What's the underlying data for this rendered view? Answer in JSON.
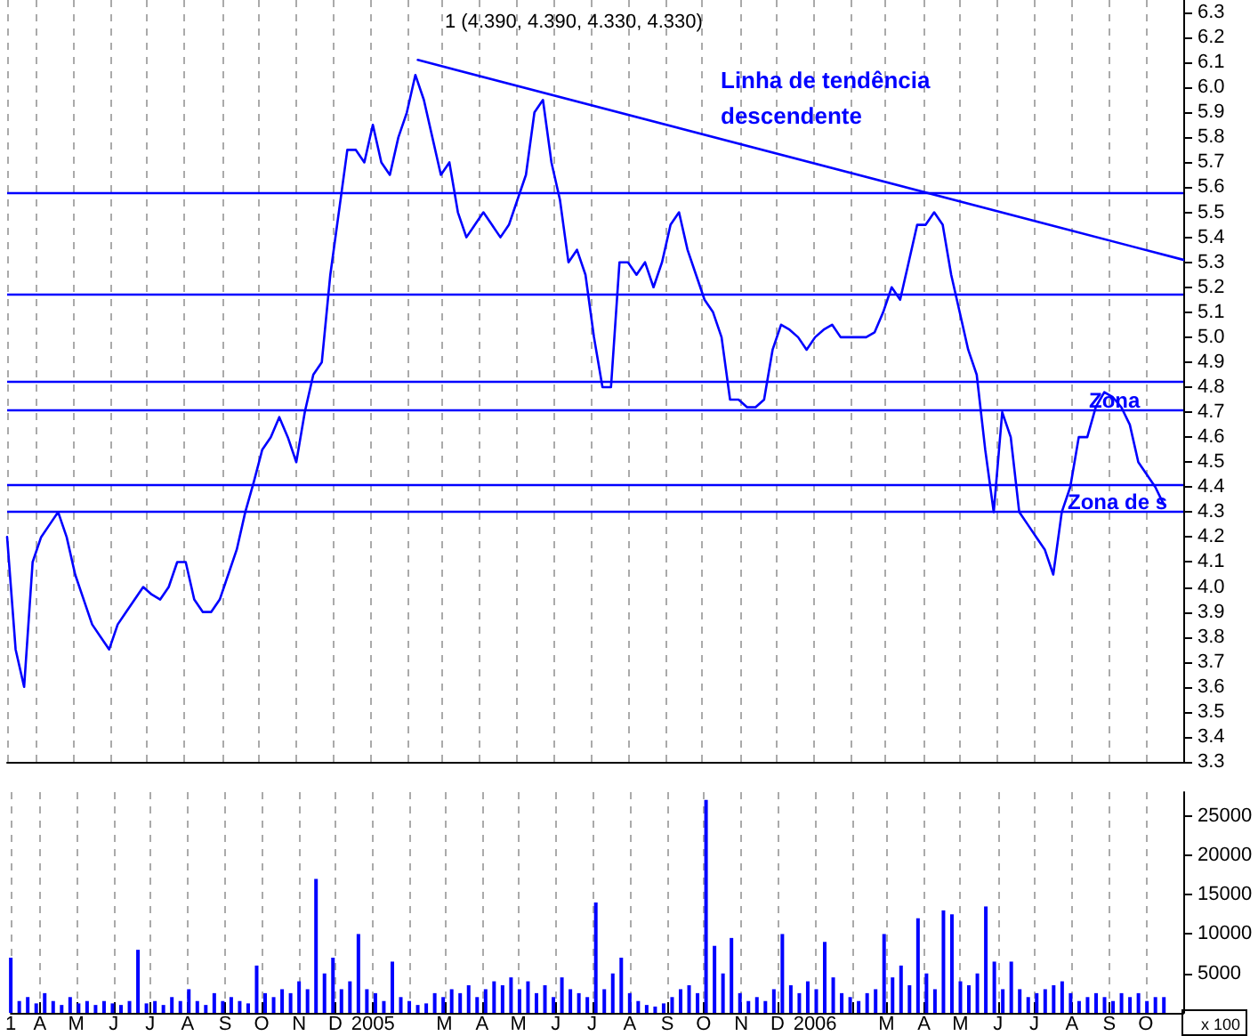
{
  "chart_data": [
    {
      "type": "line",
      "title": "1 (4.390, 4.390, 4.330, 4.330)",
      "x": [
        "2004-03-08",
        "2004-03-15",
        "2004-03-22",
        "2004-03-29",
        "2004-04-05",
        "2004-04-12",
        "2004-04-19",
        "2004-04-26",
        "2004-05-03",
        "2004-05-10",
        "2004-05-17",
        "2004-05-24",
        "2004-05-31",
        "2004-06-07",
        "2004-06-14",
        "2004-06-21",
        "2004-06-28",
        "2004-07-05",
        "2004-07-12",
        "2004-07-19",
        "2004-07-26",
        "2004-08-02",
        "2004-08-09",
        "2004-08-16",
        "2004-08-23",
        "2004-08-30",
        "2004-09-06",
        "2004-09-13",
        "2004-09-20",
        "2004-09-27",
        "2004-10-04",
        "2004-10-11",
        "2004-10-18",
        "2004-10-25",
        "2004-11-01",
        "2004-11-08",
        "2004-11-15",
        "2004-11-22",
        "2004-11-29",
        "2004-12-06",
        "2004-12-13",
        "2004-12-20",
        "2004-12-27",
        "2005-01-03",
        "2005-01-10",
        "2005-01-17",
        "2005-01-24",
        "2005-01-31",
        "2005-02-07",
        "2005-02-14",
        "2005-02-21",
        "2005-02-28",
        "2005-03-07",
        "2005-03-14",
        "2005-03-21",
        "2005-03-28",
        "2005-04-04",
        "2005-04-11",
        "2005-04-18",
        "2005-04-25",
        "2005-05-02",
        "2005-05-09",
        "2005-05-16",
        "2005-05-23",
        "2005-05-30",
        "2005-06-06",
        "2005-06-13",
        "2005-06-20",
        "2005-06-27",
        "2005-07-04",
        "2005-07-11",
        "2005-07-18",
        "2005-07-25",
        "2005-08-01",
        "2005-08-08",
        "2005-08-15",
        "2005-08-22",
        "2005-08-29",
        "2005-09-05",
        "2005-09-12",
        "2005-09-19",
        "2005-09-26",
        "2005-10-03",
        "2005-10-10",
        "2005-10-17",
        "2005-10-24",
        "2005-10-31",
        "2005-11-07",
        "2005-11-14",
        "2005-11-21",
        "2005-11-28",
        "2005-12-05",
        "2005-12-12",
        "2005-12-19",
        "2005-12-26",
        "2006-01-02",
        "2006-01-09",
        "2006-01-16",
        "2006-01-23",
        "2006-01-30",
        "2006-02-06",
        "2006-02-13",
        "2006-02-20",
        "2006-02-27",
        "2006-03-06",
        "2006-03-13",
        "2006-03-20",
        "2006-03-27",
        "2006-04-03",
        "2006-04-10",
        "2006-04-17",
        "2006-04-24",
        "2006-05-01",
        "2006-05-08",
        "2006-05-15",
        "2006-05-22",
        "2006-05-29",
        "2006-06-05",
        "2006-06-12",
        "2006-06-19",
        "2006-06-26",
        "2006-07-03",
        "2006-07-10",
        "2006-07-17",
        "2006-07-24",
        "2006-07-31",
        "2006-08-07",
        "2006-08-14",
        "2006-08-21",
        "2006-08-28",
        "2006-09-04",
        "2006-09-11",
        "2006-09-18",
        "2006-09-25",
        "2006-10-02",
        "2006-10-09",
        "2006-10-16"
      ],
      "series": [
        {
          "color": "#0000ff",
          "values": [
            4.2,
            3.75,
            3.6,
            4.1,
            4.2,
            4.25,
            4.3,
            4.2,
            4.05,
            3.95,
            3.85,
            3.8,
            3.75,
            3.85,
            3.9,
            3.95,
            4.0,
            3.97,
            3.95,
            4.0,
            4.1,
            4.1,
            3.95,
            3.9,
            3.9,
            3.95,
            4.05,
            4.15,
            4.3,
            4.42,
            4.55,
            4.6,
            4.68,
            4.6,
            4.5,
            4.7,
            4.85,
            4.9,
            5.25,
            5.5,
            5.75,
            5.75,
            5.7,
            5.85,
            5.7,
            5.65,
            5.8,
            5.9,
            6.05,
            5.95,
            5.8,
            5.65,
            5.7,
            5.5,
            5.4,
            5.45,
            5.5,
            5.45,
            5.4,
            5.45,
            5.55,
            5.65,
            5.9,
            5.95,
            5.7,
            5.55,
            5.3,
            5.35,
            5.25,
            5.0,
            4.8,
            4.8,
            5.3,
            5.3,
            5.25,
            5.3,
            5.2,
            5.3,
            5.45,
            5.5,
            5.35,
            5.25,
            5.15,
            5.1,
            5.0,
            4.75,
            4.75,
            4.72,
            4.72,
            4.75,
            4.95,
            5.05,
            5.03,
            5.0,
            4.95,
            5.0,
            5.03,
            5.05,
            5.0,
            5.0,
            5.0,
            5.0,
            5.02,
            5.1,
            5.2,
            5.15,
            5.3,
            5.45,
            5.45,
            5.5,
            5.45,
            5.25,
            5.1,
            4.95,
            4.85,
            4.55,
            4.3,
            4.7,
            4.6,
            4.3,
            4.25,
            4.2,
            4.15,
            4.05,
            4.3,
            4.4,
            4.6,
            4.6,
            4.72,
            4.78,
            4.76,
            4.72,
            4.65,
            4.5,
            4.45,
            4.4,
            4.33
          ]
        },
        {
          "type": "line",
          "color": "#0000ff",
          "x": [
            "2005-02-09",
            "2006-11-01"
          ],
          "values": [
            6.11,
            5.31
          ]
        }
      ],
      "xlim": [
        "2004-03-08",
        "2006-11-01"
      ],
      "xticks": [
        {
          "value": "2004-03-08",
          "label": "1"
        },
        {
          "value": "2004-04-01",
          "label": "A"
        },
        {
          "value": "2004-05-01",
          "label": "M"
        },
        {
          "value": "2004-06-01",
          "label": "J"
        },
        {
          "value": "2004-07-01",
          "label": "J"
        },
        {
          "value": "2004-08-01",
          "label": "A"
        },
        {
          "value": "2004-09-01",
          "label": "S"
        },
        {
          "value": "2004-10-01",
          "label": "O"
        },
        {
          "value": "2004-11-01",
          "label": "N"
        },
        {
          "value": "2004-12-01",
          "label": "D"
        },
        {
          "value": "2005-01-01",
          "label": "2005"
        },
        {
          "value": "2005-02-01",
          "label": null
        },
        {
          "value": "2005-03-01",
          "label": "M"
        },
        {
          "value": "2005-04-01",
          "label": "A"
        },
        {
          "value": "2005-05-01",
          "label": "M"
        },
        {
          "value": "2005-06-01",
          "label": "J"
        },
        {
          "value": "2005-07-01",
          "label": "J"
        },
        {
          "value": "2005-08-01",
          "label": "A"
        },
        {
          "value": "2005-09-01",
          "label": "S"
        },
        {
          "value": "2005-10-01",
          "label": "O"
        },
        {
          "value": "2005-11-01",
          "label": "N"
        },
        {
          "value": "2005-12-01",
          "label": "D"
        },
        {
          "value": "2006-01-01",
          "label": "2006"
        },
        {
          "value": "2006-02-01",
          "label": null
        },
        {
          "value": "2006-03-01",
          "label": "M"
        },
        {
          "value": "2006-04-01",
          "label": "A"
        },
        {
          "value": "2006-05-01",
          "label": "M"
        },
        {
          "value": "2006-06-01",
          "label": "J"
        },
        {
          "value": "2006-07-01",
          "label": "J"
        },
        {
          "value": "2006-08-01",
          "label": "A"
        },
        {
          "value": "2006-09-01",
          "label": "S"
        },
        {
          "value": "2006-10-01",
          "label": "O"
        }
      ],
      "ylim": [
        3.3,
        6.35
      ],
      "yticks": [
        3.3,
        3.4,
        3.5,
        3.6,
        3.7,
        3.8,
        3.9,
        {
          "value": 4,
          "label": "4.0"
        },
        4.1,
        4.2,
        4.3,
        4.4,
        4.5,
        4.6,
        4.7,
        4.8,
        4.9,
        {
          "value": 5,
          "label": "5.0"
        },
        5.1,
        5.2,
        5.3,
        5.4,
        5.5,
        5.6,
        5.7,
        5.8,
        5.9,
        {
          "value": 6,
          "label": "6.0"
        },
        6.1,
        6.2,
        6.3
      ],
      "ref_lines": [
        {
          "axis": "y",
          "value": 5.58,
          "color": "#0000ff"
        },
        {
          "axis": "y",
          "value": 5.17,
          "color": "#0000ff"
        },
        {
          "axis": "y",
          "value": 4.82,
          "color": "#0000ff"
        },
        {
          "axis": "y",
          "value": 4.71,
          "color": "#0000ff"
        },
        {
          "axis": "y",
          "value": 4.41,
          "color": "#0000ff"
        },
        {
          "axis": "y",
          "value": 4.3,
          "color": "#0000ff"
        }
      ],
      "annotations": [
        "Linha de tendência descendente",
        "Zona",
        "Zona de s"
      ],
      "grid": "x",
      "tick_labels": "y"
    },
    {
      "type": "bar",
      "x": [
        "2004-03-08",
        "2004-03-15",
        "2004-03-22",
        "2004-03-29",
        "2004-04-05",
        "2004-04-12",
        "2004-04-19",
        "2004-04-26",
        "2004-05-03",
        "2004-05-10",
        "2004-05-17",
        "2004-05-24",
        "2004-05-31",
        "2004-06-07",
        "2004-06-14",
        "2004-06-21",
        "2004-06-28",
        "2004-07-05",
        "2004-07-12",
        "2004-07-19",
        "2004-07-26",
        "2004-08-02",
        "2004-08-09",
        "2004-08-16",
        "2004-08-23",
        "2004-08-30",
        "2004-09-06",
        "2004-09-13",
        "2004-09-20",
        "2004-09-27",
        "2004-10-04",
        "2004-10-11",
        "2004-10-18",
        "2004-10-25",
        "2004-11-01",
        "2004-11-08",
        "2004-11-15",
        "2004-11-22",
        "2004-11-29",
        "2004-12-06",
        "2004-12-13",
        "2004-12-20",
        "2004-12-27",
        "2005-01-03",
        "2005-01-10",
        "2005-01-17",
        "2005-01-24",
        "2005-01-31",
        "2005-02-07",
        "2005-02-14",
        "2005-02-21",
        "2005-02-28",
        "2005-03-07",
        "2005-03-14",
        "2005-03-21",
        "2005-03-28",
        "2005-04-04",
        "2005-04-11",
        "2005-04-18",
        "2005-04-25",
        "2005-05-02",
        "2005-05-09",
        "2005-05-16",
        "2005-05-23",
        "2005-05-30",
        "2005-06-06",
        "2005-06-13",
        "2005-06-20",
        "2005-06-27",
        "2005-07-04",
        "2005-07-11",
        "2005-07-18",
        "2005-07-25",
        "2005-08-01",
        "2005-08-08",
        "2005-08-15",
        "2005-08-22",
        "2005-08-29",
        "2005-09-05",
        "2005-09-12",
        "2005-09-19",
        "2005-09-26",
        "2005-10-03",
        "2005-10-10",
        "2005-10-17",
        "2005-10-24",
        "2005-10-31",
        "2005-11-07",
        "2005-11-14",
        "2005-11-21",
        "2005-11-28",
        "2005-12-05",
        "2005-12-12",
        "2005-12-19",
        "2005-12-26",
        "2006-01-02",
        "2006-01-09",
        "2006-01-16",
        "2006-01-23",
        "2006-01-30",
        "2006-02-06",
        "2006-02-13",
        "2006-02-20",
        "2006-02-27",
        "2006-03-06",
        "2006-03-13",
        "2006-03-20",
        "2006-03-27",
        "2006-04-03",
        "2006-04-10",
        "2006-04-17",
        "2006-04-24",
        "2006-05-01",
        "2006-05-08",
        "2006-05-15",
        "2006-05-22",
        "2006-05-29",
        "2006-06-05",
        "2006-06-12",
        "2006-06-19",
        "2006-06-26",
        "2006-07-03",
        "2006-07-10",
        "2006-07-17",
        "2006-07-24",
        "2006-07-31",
        "2006-08-07",
        "2006-08-14",
        "2006-08-21",
        "2006-08-28",
        "2006-09-04",
        "2006-09-11",
        "2006-09-18",
        "2006-09-25",
        "2006-10-02",
        "2006-10-09",
        "2006-10-16"
      ],
      "series": [
        {
          "color": "#0000ff",
          "values": [
            7000,
            1500,
            2000,
            1200,
            2500,
            1500,
            1000,
            2000,
            1200,
            1500,
            1000,
            1500,
            1200,
            1000,
            1500,
            8000,
            1200,
            1500,
            1000,
            2000,
            1500,
            3000,
            1500,
            1000,
            2500,
            1500,
            2000,
            1500,
            1200,
            6000,
            2500,
            2000,
            3000,
            2500,
            4000,
            3000,
            17000,
            5000,
            7000,
            3000,
            4000,
            10000,
            3000,
            2500,
            1500,
            6500,
            2000,
            1500,
            1000,
            1200,
            2500,
            2000,
            3000,
            2500,
            3500,
            2000,
            3000,
            4000,
            3500,
            4500,
            3000,
            4000,
            2500,
            3500,
            2000,
            4500,
            3000,
            2500,
            2000,
            14000,
            3000,
            5000,
            7000,
            2500,
            1500,
            1000,
            800,
            1200,
            2000,
            3000,
            3500,
            2500,
            27000,
            8500,
            5000,
            9500,
            2500,
            1500,
            2000,
            1500,
            3000,
            10000,
            3500,
            2500,
            4000,
            3000,
            9000,
            4500,
            2500,
            2000,
            1500,
            2500,
            3000,
            10000,
            4500,
            6000,
            3500,
            12000,
            5000,
            3000,
            13000,
            12500,
            4000,
            3500,
            5000,
            13500,
            6500,
            3000,
            6500,
            3000,
            2000,
            2500,
            3000,
            3500,
            4000,
            2500,
            1500,
            2000,
            2500,
            2000,
            1500,
            2500,
            2000,
            2500,
            1500,
            2000,
            2000
          ]
        }
      ],
      "xlim": [
        "2004-03-08",
        "2006-11-01"
      ],
      "xticks": [
        {
          "value": "2004-03-08",
          "label": "1"
        },
        {
          "value": "2004-04-01",
          "label": "A"
        },
        {
          "value": "2004-05-01",
          "label": "M"
        },
        {
          "value": "2004-06-01",
          "label": "J"
        },
        {
          "value": "2004-07-01",
          "label": "J"
        },
        {
          "value": "2004-08-01",
          "label": "A"
        },
        {
          "value": "2004-09-01",
          "label": "S"
        },
        {
          "value": "2004-10-01",
          "label": "O"
        },
        {
          "value": "2004-11-01",
          "label": "N"
        },
        {
          "value": "2004-12-01",
          "label": "D"
        },
        {
          "value": "2005-01-01",
          "label": "2005"
        },
        {
          "value": "2005-02-01",
          "label": null
        },
        {
          "value": "2005-03-01",
          "label": "M"
        },
        {
          "value": "2005-04-01",
          "label": "A"
        },
        {
          "value": "2005-05-01",
          "label": "M"
        },
        {
          "value": "2005-06-01",
          "label": "J"
        },
        {
          "value": "2005-07-01",
          "label": "J"
        },
        {
          "value": "2005-08-01",
          "label": "A"
        },
        {
          "value": "2005-09-01",
          "label": "S"
        },
        {
          "value": "2005-10-01",
          "label": "O"
        },
        {
          "value": "2005-11-01",
          "label": "N"
        },
        {
          "value": "2005-12-01",
          "label": "D"
        },
        {
          "value": "2006-01-01",
          "label": "2006"
        },
        {
          "value": "2006-02-01",
          "label": null
        },
        {
          "value": "2006-03-01",
          "label": "M"
        },
        {
          "value": "2006-04-01",
          "label": "A"
        },
        {
          "value": "2006-05-01",
          "label": "M"
        },
        {
          "value": "2006-06-01",
          "label": "J"
        },
        {
          "value": "2006-07-01",
          "label": "J"
        },
        {
          "value": "2006-08-01",
          "label": "A"
        },
        {
          "value": "2006-09-01",
          "label": "S"
        },
        {
          "value": "2006-10-01",
          "label": "O"
        }
      ],
      "ylim": [
        0,
        28000
      ],
      "yticks": [
        5000,
        10000,
        15000,
        20000,
        25000
      ],
      "annotations": [
        "x 100"
      ],
      "grid": "x"
    }
  ]
}
